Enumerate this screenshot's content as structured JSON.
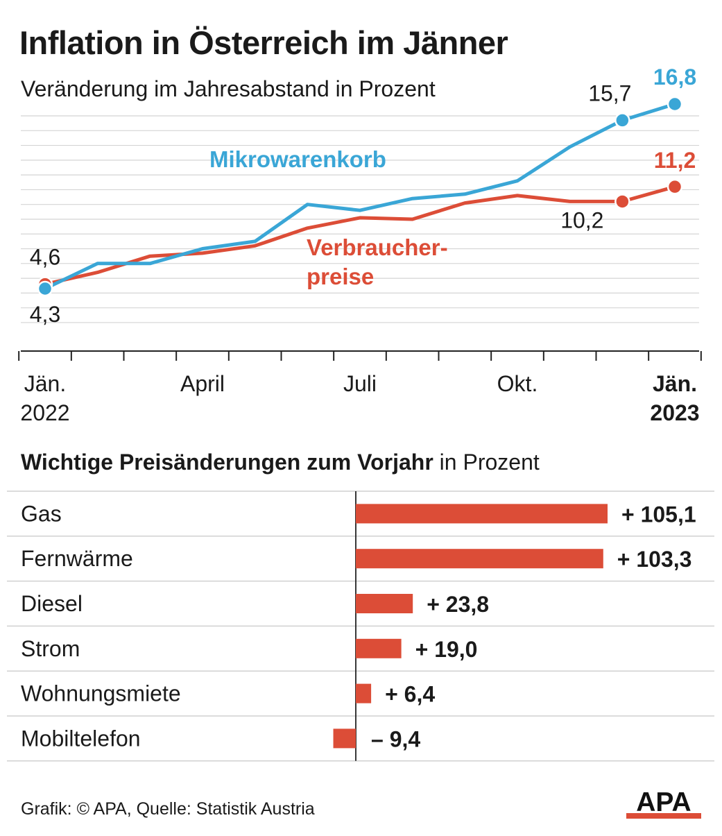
{
  "header": {
    "title": "Inflation in Österreich im Jänner",
    "subtitle": "Veränderung im Jahresabstand in Prozent"
  },
  "chart_data": [
    {
      "type": "line",
      "x": [
        "Jän. 2022",
        "Feb. 2022",
        "März 2022",
        "April 2022",
        "Mai 2022",
        "Juni 2022",
        "Juli 2022",
        "Aug. 2022",
        "Sep. 2022",
        "Okt. 2022",
        "Nov. 2022",
        "Dez. 2022",
        "Jän. 2023"
      ],
      "tick_labels": [
        {
          "index": 0,
          "line1": "Jän.",
          "line2": "2022",
          "bold": false
        },
        {
          "index": 3,
          "line1": "April",
          "line2": "",
          "bold": false
        },
        {
          "index": 6,
          "line1": "Juli",
          "line2": "",
          "bold": false
        },
        {
          "index": 9,
          "line1": "Okt.",
          "line2": "",
          "bold": false
        },
        {
          "index": 12,
          "line1": "Jän.",
          "line2": "2023",
          "bold": true
        }
      ],
      "ylim": [
        2,
        17
      ],
      "grid": true,
      "series": [
        {
          "name": "Mikrowarenkorb",
          "label": "Mikrowarenkorb",
          "color": "#3aa6d6",
          "values": [
            4.3,
            6.0,
            6.0,
            7.0,
            7.5,
            10.0,
            9.6,
            10.4,
            10.7,
            11.6,
            13.9,
            15.7,
            16.8
          ],
          "point_labels": [
            {
              "index": 0,
              "text": "4,3",
              "bold": false
            },
            {
              "index": 11,
              "text": "15,7",
              "bold": false
            },
            {
              "index": 12,
              "text": "16,8",
              "bold": true
            }
          ]
        },
        {
          "name": "Verbraucherpreise",
          "label_line1": "Verbraucher-",
          "label_line2": "preise",
          "color": "#dc4d37",
          "values": [
            4.6,
            5.4,
            6.5,
            6.7,
            7.2,
            8.4,
            9.1,
            9.0,
            10.1,
            10.6,
            10.2,
            10.2,
            11.2
          ],
          "point_labels": [
            {
              "index": 0,
              "text": "4,6",
              "bold": false
            },
            {
              "index": 11,
              "text": "10,2",
              "bold": false
            },
            {
              "index": 12,
              "text": "11,2",
              "bold": true
            }
          ]
        }
      ]
    },
    {
      "type": "bar",
      "orientation": "horizontal",
      "title_bold": "Wichtige Preisänderungen zum Vorjahr",
      "title_regular": " in Prozent",
      "color": "#dc4d37",
      "categories": [
        "Gas",
        "Fernwärme",
        "Diesel",
        "Strom",
        "Wohnungsmiete",
        "Mobiltelefon"
      ],
      "values": [
        105.1,
        103.3,
        23.8,
        19.0,
        6.4,
        -9.4
      ],
      "value_labels": [
        "+ 105,1",
        "+ 103,3",
        "+ 23,8",
        "+ 19,0",
        "+ 6,4",
        "– 9,4"
      ]
    }
  ],
  "footer": {
    "source": "Grafik: © APA, Quelle: Statistik Austria",
    "logo_text": "APA"
  }
}
